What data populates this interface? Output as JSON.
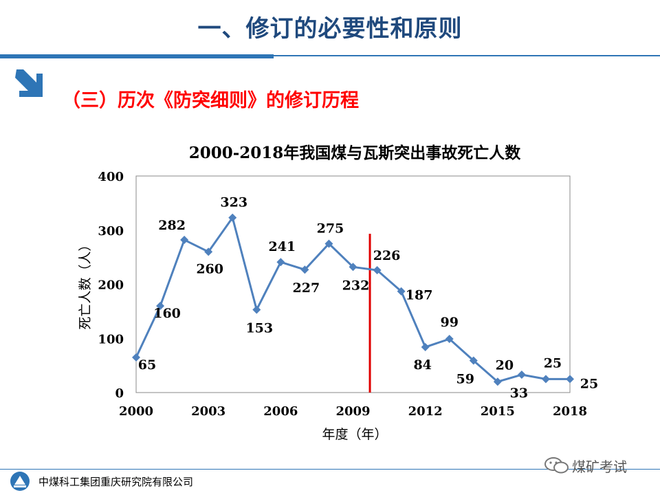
{
  "slide": {
    "title": "一、修订的必要性和原则",
    "subtitle": "（三）历次《防突细则》的修订历程"
  },
  "chart_data": {
    "type": "line",
    "title": "2000-2018年我国煤与瓦斯突出事故死亡人数",
    "xlabel": "年度（年）",
    "ylabel": "死亡人数（人）",
    "x": [
      2000,
      2001,
      2002,
      2003,
      2004,
      2005,
      2006,
      2007,
      2008,
      2009,
      2010,
      2011,
      2012,
      2013,
      2014,
      2015,
      2016,
      2017,
      2018
    ],
    "values": [
      65,
      160,
      282,
      260,
      323,
      153,
      241,
      227,
      275,
      232,
      226,
      187,
      84,
      99,
      59,
      20,
      33,
      25,
      25
    ],
    "xticks": [
      2000,
      2003,
      2006,
      2009,
      2012,
      2015,
      2018
    ],
    "yticks": [
      0,
      100,
      200,
      300,
      400
    ],
    "xlim": [
      2000,
      2018
    ],
    "ylim": [
      0,
      400
    ],
    "vline_x": 2009.7,
    "colors": {
      "line": "#4f81bd",
      "marker": "#4f81bd",
      "vline": "#e00000"
    }
  },
  "footer": {
    "company": "中煤科工集团重庆研究院有限公司",
    "watermark": "煤矿考试"
  },
  "colors": {
    "title": "#1f497d",
    "subtitle": "#ff0000",
    "rule": "#2e75b6"
  }
}
